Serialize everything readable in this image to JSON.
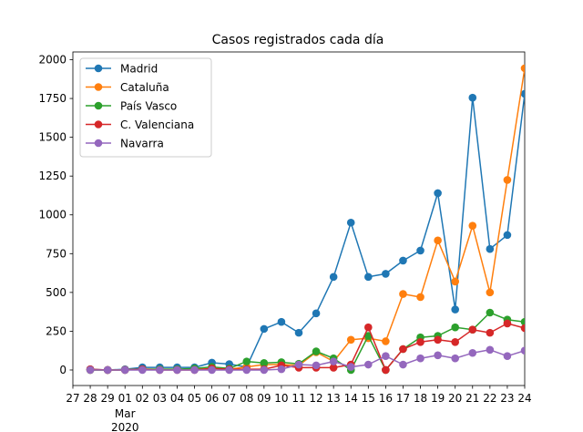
{
  "chart_data": {
    "type": "line",
    "title": "Casos registrados cada día",
    "xlabel": "",
    "ylabel": "",
    "x_tick_labels": [
      "27",
      "28",
      "29",
      "01",
      "02",
      "03",
      "04",
      "05",
      "06",
      "07",
      "08",
      "09",
      "10",
      "11",
      "12",
      "13",
      "14",
      "15",
      "16",
      "17",
      "18",
      "19",
      "20",
      "21",
      "22",
      "23",
      "24"
    ],
    "x_tick_month_label": "Mar",
    "x_tick_year_label": "2020",
    "x": [
      "2020-02-28",
      "2020-02-29",
      "2020-03-01",
      "2020-03-02",
      "2020-03-03",
      "2020-03-04",
      "2020-03-05",
      "2020-03-06",
      "2020-03-07",
      "2020-03-08",
      "2020-03-09",
      "2020-03-10",
      "2020-03-11",
      "2020-03-12",
      "2020-03-13",
      "2020-03-14",
      "2020-03-15",
      "2020-03-16",
      "2020-03-17",
      "2020-03-18",
      "2020-03-19",
      "2020-03-20",
      "2020-03-21",
      "2020-03-22",
      "2020-03-23",
      "2020-03-24"
    ],
    "xlim": [
      "2020-02-27",
      "2020-03-24"
    ],
    "ylim": [
      -100,
      2050
    ],
    "y_ticks": [
      0,
      250,
      500,
      750,
      1000,
      1250,
      1500,
      1750,
      2000
    ],
    "y_tick_labels": [
      "0",
      "250",
      "500",
      "750",
      "1000",
      "1250",
      "1500",
      "1750",
      "2000"
    ],
    "grid": false,
    "legend_position": "top-left",
    "series": [
      {
        "name": "Madrid",
        "color": "#1f77b4",
        "values": [
          5,
          0,
          5,
          17,
          17,
          17,
          17,
          47,
          38,
          20,
          265,
          310,
          240,
          365,
          600,
          950,
          600,
          620,
          705,
          770,
          1140,
          390,
          1755,
          780,
          870,
          1780
        ]
      },
      {
        "name": "Cataluña",
        "color": "#ff7f0e",
        "values": [
          0,
          0,
          2,
          5,
          5,
          5,
          5,
          10,
          5,
          20,
          35,
          35,
          30,
          115,
          55,
          195,
          205,
          185,
          490,
          470,
          835,
          570,
          930,
          500,
          1225,
          1945
        ]
      },
      {
        "name": "País Vasco",
        "color": "#2ca02c",
        "values": [
          0,
          0,
          0,
          5,
          5,
          5,
          10,
          20,
          10,
          55,
          45,
          50,
          40,
          120,
          75,
          0,
          220,
          0,
          135,
          210,
          220,
          275,
          260,
          370,
          325,
          310
        ]
      },
      {
        "name": "C. Valenciana",
        "color": "#d62728",
        "values": [
          5,
          0,
          0,
          5,
          0,
          0,
          0,
          10,
          5,
          5,
          5,
          30,
          15,
          15,
          15,
          35,
          275,
          0,
          135,
          180,
          195,
          180,
          260,
          240,
          300,
          270
        ]
      },
      {
        "name": "Navarra",
        "color": "#9467bd",
        "values": [
          0,
          0,
          0,
          0,
          0,
          0,
          0,
          0,
          0,
          0,
          0,
          5,
          35,
          30,
          55,
          20,
          35,
          90,
          35,
          75,
          95,
          75,
          110,
          130,
          90,
          125
        ]
      }
    ]
  }
}
